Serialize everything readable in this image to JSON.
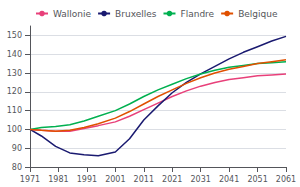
{
  "chart_data": {
    "type": "line",
    "x": [
      1971,
      1975,
      1980,
      1985,
      1990,
      1995,
      2001,
      2006,
      2011,
      2016,
      2021,
      2026,
      2031,
      2036,
      2041,
      2046,
      2051,
      2056,
      2061
    ],
    "series": [
      {
        "name": "Wallonie",
        "color": "#e8407a",
        "values": [
          100,
          99.5,
          99.0,
          99.0,
          100.5,
          102.0,
          104.0,
          107.0,
          110.5,
          114.0,
          117.5,
          120.5,
          123.0,
          125.0,
          126.5,
          127.5,
          128.5,
          129.0,
          129.5
        ]
      },
      {
        "name": "Bruxelles",
        "color": "#1a1a70",
        "values": [
          100,
          96.5,
          91.0,
          87.5,
          86.5,
          86.0,
          88.0,
          95.0,
          105.0,
          112.5,
          119.5,
          125.0,
          129.5,
          133.5,
          137.5,
          141.0,
          144.0,
          147.0,
          149.5
        ]
      },
      {
        "name": "Flandre",
        "color": "#00b050",
        "values": [
          100,
          101.0,
          101.5,
          102.5,
          104.5,
          107.0,
          110.0,
          113.5,
          117.5,
          121.0,
          124.0,
          127.0,
          129.5,
          131.5,
          133.0,
          134.0,
          135.0,
          135.5,
          136.0
        ]
      },
      {
        "name": "Belgique",
        "color": "#e05000",
        "values": [
          100,
          99.5,
          99.0,
          99.5,
          101.0,
          103.0,
          106.0,
          109.5,
          113.5,
          117.5,
          121.0,
          124.5,
          127.5,
          130.0,
          132.0,
          133.5,
          135.0,
          136.0,
          137.0
        ]
      }
    ],
    "xlim": [
      1971,
      2061
    ],
    "ylim": [
      80,
      155
    ],
    "xticks": [
      1971,
      1981,
      1991,
      2001,
      2011,
      2021,
      2031,
      2041,
      2051,
      2061
    ],
    "yticks": [
      80,
      90,
      100,
      110,
      120,
      130,
      140,
      150
    ],
    "grid": true,
    "legend": "upper left"
  }
}
